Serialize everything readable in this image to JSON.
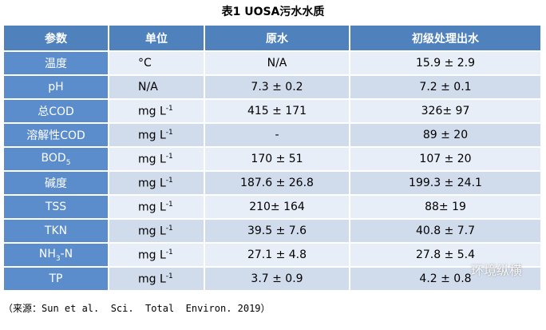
{
  "title": "表1 UOSA污水水质",
  "table": {
    "header": [
      "参数",
      "单位",
      "原水",
      "初级处理出水"
    ],
    "rows": [
      [
        "温度",
        "°C",
        "N/A",
        "15.9 ± 2.9"
      ],
      [
        "pH",
        "N/A",
        "7.3 ± 0.2",
        "7.2 ± 0.1"
      ],
      [
        "总COD",
        {
          "base": "mg L",
          "sup": "-1"
        },
        "415 ± 171",
        "326± 97"
      ],
      [
        "溶解性COD",
        {
          "base": "mg L",
          "sup": "-1"
        },
        "-",
        "89 ± 20"
      ],
      [
        {
          "base": "BOD",
          "sub": "5"
        },
        {
          "base": "mg L",
          "sup": "-1"
        },
        "170 ± 51",
        "107 ± 20"
      ],
      [
        "碱度",
        {
          "base": "mg L",
          "sup": "-1"
        },
        "187.6 ± 26.8",
        "199.3 ± 24.1"
      ],
      [
        "TSS",
        {
          "base": "mg L",
          "sup": "-1"
        },
        "210± 164",
        "88± 19"
      ],
      [
        "TKN",
        {
          "base": "mg L",
          "sup": "-1"
        },
        "39.5 ± 7.6",
        "40.8 ± 7.7"
      ],
      [
        {
          "base": "NH",
          "sub": "3",
          "after": "-N"
        },
        {
          "base": "mg L",
          "sup": "-1"
        },
        "27.1 ± 4.8",
        "27.8 ± 5.4"
      ],
      [
        "TP",
        {
          "base": "mg L",
          "sup": "-1"
        },
        "3.7 ± 0.9",
        "4.2 ± 0.8"
      ]
    ]
  },
  "caption": "（来源：Sun et al.  Sci.  Total  Environ. 2019）",
  "watermark": "环境纵横"
}
